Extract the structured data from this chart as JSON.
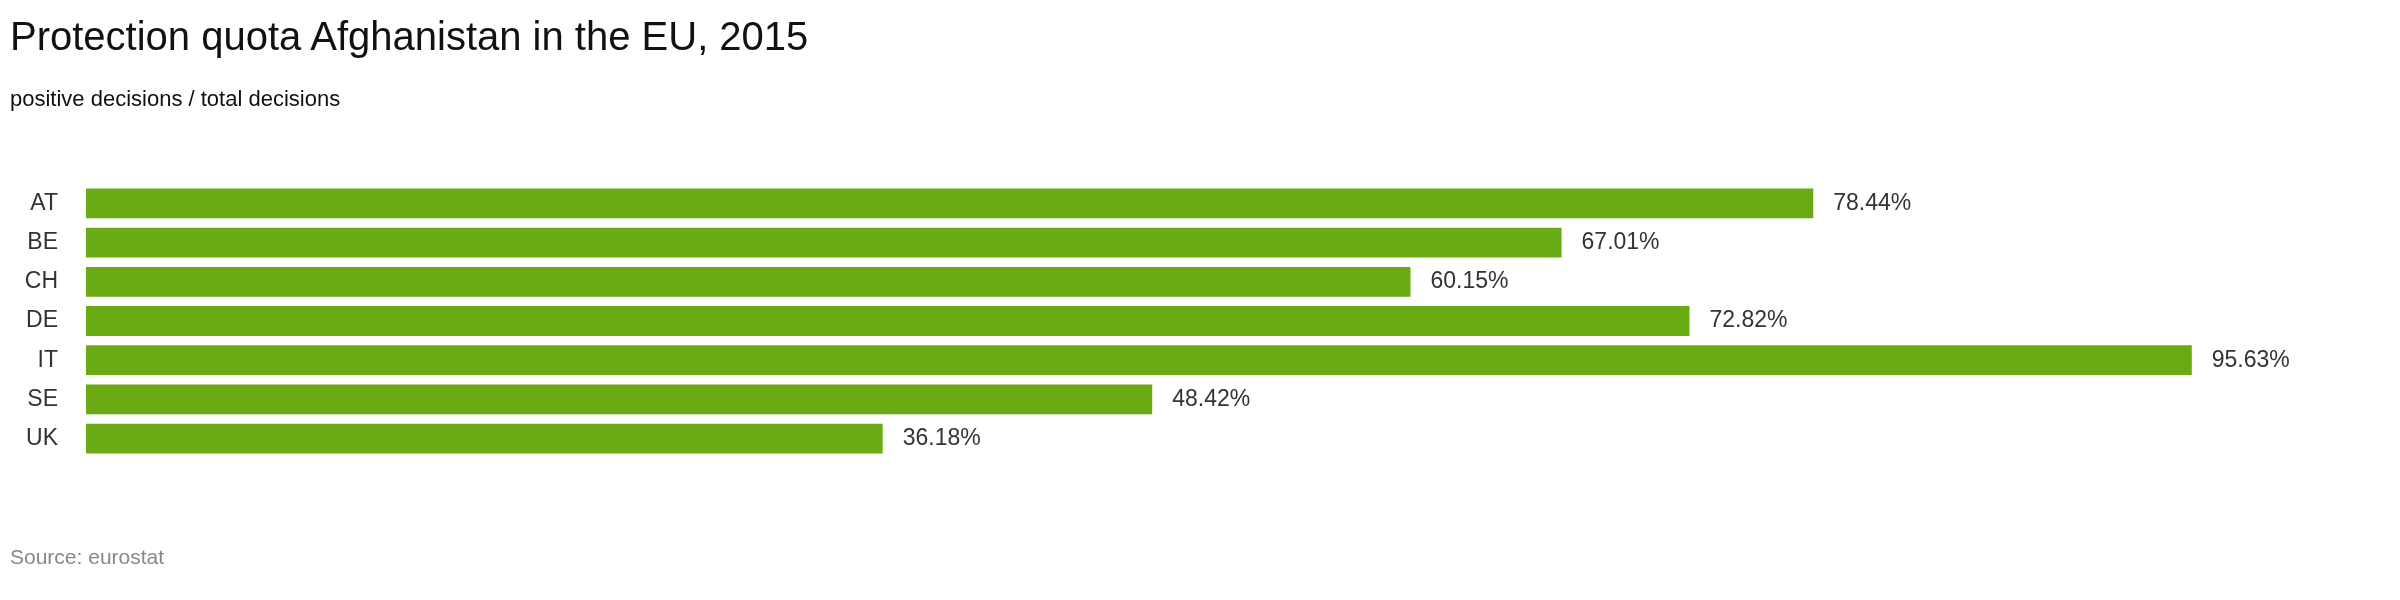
{
  "chart_data": {
    "type": "bar",
    "orientation": "horizontal",
    "title": "Protection quota Afghanistan in the EU, 2015",
    "subtitle": "positive decisions / total decisions",
    "categories": [
      "AT",
      "BE",
      "CH",
      "DE",
      "IT",
      "SE",
      "UK"
    ],
    "values": [
      78.44,
      67.01,
      60.15,
      72.82,
      95.63,
      48.42,
      36.18
    ],
    "value_labels": [
      "78.44%",
      "67.01%",
      "60.15%",
      "72.82%",
      "95.63%",
      "48.42%",
      "36.18%"
    ],
    "color": "#6aaa14",
    "tick_labels": "y",
    "legend": false,
    "annotations": [
      "Source: eurostat"
    ]
  }
}
